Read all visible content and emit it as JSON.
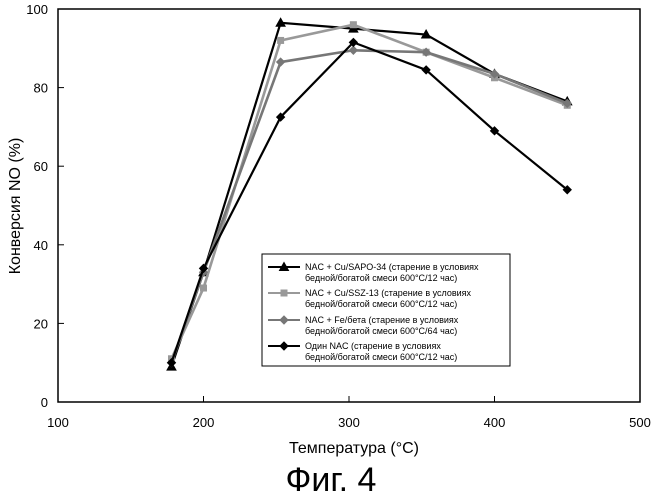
{
  "chart_data": {
    "type": "line",
    "xlabel": "Температура (°C)",
    "ylabel": "Конверсия NO (%)",
    "xlim": [
      100,
      500
    ],
    "ylim": [
      0,
      100
    ],
    "xticks": [
      100,
      200,
      300,
      400,
      500
    ],
    "yticks": [
      0,
      20,
      40,
      60,
      80,
      100
    ],
    "grid": false,
    "legend_position": "center-right",
    "caption": "Фиг. 4",
    "series": [
      {
        "name_lines": [
          "NAC + Cu/SAPO-34 (старение в условиях",
          "бедной/богатой смеси 600°C/12 час)"
        ],
        "marker": "triangle",
        "color": "#000000",
        "x": [
          178,
          200,
          253,
          303,
          353,
          400,
          450
        ],
        "y": [
          9,
          33,
          96.5,
          95,
          93.5,
          83.5,
          76.5
        ]
      },
      {
        "name_lines": [
          "NAC + Cu/SSZ-13 (старение в условиях",
          "бедной/богатой смеси 600°C/12 час)"
        ],
        "marker": "square",
        "color": "#999999",
        "x": [
          178,
          200,
          253,
          303,
          353,
          400,
          450
        ],
        "y": [
          11,
          29,
          92,
          96,
          89,
          82.5,
          75.5
        ]
      },
      {
        "name_lines": [
          "NAC + Fe/бета (старение в условиях",
          "бедной/богатой смеси 600°C/64 час)"
        ],
        "marker": "diamond",
        "color": "#777777",
        "x": [
          178,
          200,
          253,
          303,
          353,
          400,
          450
        ],
        "y": [
          10,
          33,
          86.5,
          89.5,
          89,
          83.5,
          76
        ]
      },
      {
        "name_lines": [
          "Один NAC (старение в условиях",
          "бедной/богатой смеси 600°C/12 час)"
        ],
        "marker": "diamond",
        "color": "#000000",
        "x": [
          178,
          200,
          253,
          303,
          353,
          400,
          450
        ],
        "y": [
          10,
          34,
          72.5,
          91.5,
          84.5,
          69,
          54
        ]
      }
    ]
  }
}
